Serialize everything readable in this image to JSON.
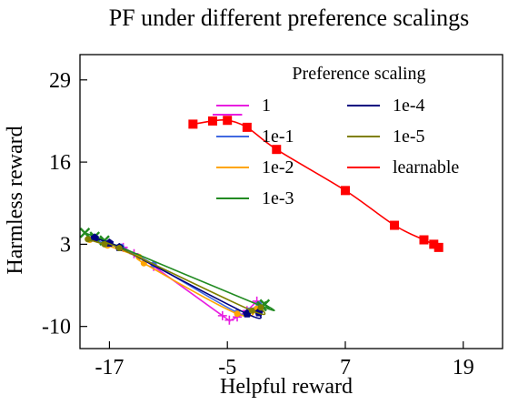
{
  "chart_data": {
    "type": "line",
    "title": "PF under different preference scalings",
    "xlabel": "Helpful reward",
    "ylabel": "Harmless reward",
    "xlim": [
      -20,
      23
    ],
    "ylim": [
      -13.5,
      33
    ],
    "xticks": [
      -17,
      -5,
      7,
      19
    ],
    "yticks": [
      29,
      16,
      3,
      -10
    ],
    "grid": false,
    "legend": {
      "title": "Preference scaling",
      "placement": "top-right",
      "columns": 2
    },
    "series": [
      {
        "name": "1",
        "color": "#e81ee0",
        "marker": "plus",
        "points": [
          [
            -15.6,
            2.5
          ],
          [
            -14.5,
            1.5
          ],
          [
            -12.5,
            -0.5
          ],
          [
            -5.5,
            -8.3
          ],
          [
            -4.8,
            -9.0
          ],
          [
            -4.0,
            -8.5
          ],
          [
            -3.0,
            -7.5
          ],
          [
            -2.0,
            -6.0
          ]
        ]
      },
      {
        "name": "1e-1",
        "color": "#4169e1",
        "marker": "circle",
        "points": [
          [
            -19.0,
            3.8
          ],
          [
            -17.0,
            3.0
          ],
          [
            -15.8,
            2.6
          ],
          [
            -12.5,
            -0.2
          ],
          [
            -4.0,
            -7.8
          ],
          [
            -2.8,
            -7.5
          ],
          [
            -1.8,
            -6.5
          ]
        ]
      },
      {
        "name": "1e-2",
        "color": "#ffa500",
        "marker": "circle",
        "points": [
          [
            -19.0,
            3.7
          ],
          [
            -17.2,
            2.8
          ],
          [
            -14.0,
            1.0
          ],
          [
            -13.5,
            0.0
          ],
          [
            -4.0,
            -8.0
          ],
          [
            -2.0,
            -7.2
          ]
        ]
      },
      {
        "name": "1e-3",
        "color": "#228b22",
        "marker": "x",
        "points": [
          [
            -19.5,
            4.8
          ],
          [
            -18.5,
            4.2
          ],
          [
            -17.5,
            3.6
          ],
          [
            -1.5,
            -6.8
          ],
          [
            -1.2,
            -6.5
          ]
        ]
      },
      {
        "name": "1e-4",
        "color": "#000080",
        "marker": "pentagon",
        "points": [
          [
            -18.5,
            4.0
          ],
          [
            -17.0,
            3.2
          ],
          [
            -16.0,
            2.5
          ],
          [
            -3.0,
            -8.0
          ],
          [
            -1.8,
            -7.8
          ]
        ]
      },
      {
        "name": "1e-5",
        "color": "#808000",
        "marker": "circle",
        "points": [
          [
            -19.2,
            3.8
          ],
          [
            -17.5,
            3.0
          ],
          [
            -16.0,
            2.4
          ],
          [
            -2.5,
            -7.5
          ],
          [
            -1.6,
            -7.0
          ]
        ]
      },
      {
        "name": "learnable",
        "color": "#ff0000",
        "marker": "square",
        "points": [
          [
            -8.5,
            22.0
          ],
          [
            -6.5,
            22.5
          ],
          [
            -5.0,
            22.6
          ],
          [
            -3.0,
            21.5
          ],
          [
            0.0,
            18.0
          ],
          [
            7.0,
            11.5
          ],
          [
            12.0,
            6.0
          ],
          [
            15.0,
            3.7
          ],
          [
            16.0,
            3.0
          ],
          [
            16.5,
            2.5
          ]
        ]
      }
    ],
    "annotation_segment": {
      "color": "#e81ee0",
      "x": [
        -6.5,
        -3.5
      ],
      "y": [
        23.5,
        23.5
      ]
    }
  }
}
